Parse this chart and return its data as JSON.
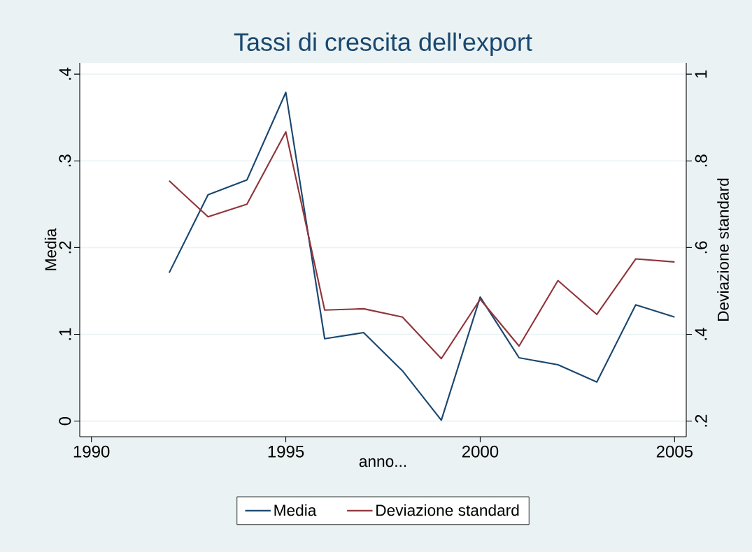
{
  "chart_data": {
    "type": "line",
    "title": "Tassi di crescita dell'export",
    "xlabel": "anno...",
    "ylabel": "Media",
    "y2label": "Deviazione standard",
    "x": [
      1992,
      1993,
      1994,
      1995,
      1996,
      1997,
      1998,
      1999,
      2000,
      2001,
      2002,
      2003,
      2004,
      2005
    ],
    "series": [
      {
        "name": "Media",
        "color": "#1a476f",
        "values": [
          0.171,
          0.261,
          0.278,
          0.379,
          0.095,
          0.102,
          0.058,
          0.001,
          0.143,
          0.073,
          0.065,
          0.045,
          0.134,
          0.12
        ]
      },
      {
        "name": "Deviazione standard",
        "color": "#90353b",
        "axis": "y2",
        "values": [
          0.754,
          0.671,
          0.7,
          0.867,
          0.456,
          0.459,
          0.44,
          0.344,
          0.481,
          0.373,
          0.524,
          0.446,
          0.574,
          0.567
        ]
      }
    ],
    "xlim": [
      1989.7,
      2005.3
    ],
    "xticks": [
      1990,
      1995,
      2000,
      2005
    ],
    "ylim": [
      -0.018,
      0.413
    ],
    "yticks": [
      0,
      {
        "value": 0.1,
        "label": ".1"
      },
      {
        "value": 0.2,
        "label": ".2"
      },
      {
        "value": 0.3,
        "label": ".3"
      },
      {
        "value": 0.4,
        "label": ".4"
      }
    ],
    "y2lim": [
      0.164,
      1.026
    ],
    "y2ticks": [
      {
        "value": 0.2,
        "label": ".2"
      },
      {
        "value": 0.4,
        "label": ".4"
      },
      {
        "value": 0.6,
        "label": ".6"
      },
      {
        "value": 0.8,
        "label": ".8"
      },
      1
    ],
    "grid": "y",
    "legend": "bottom"
  }
}
